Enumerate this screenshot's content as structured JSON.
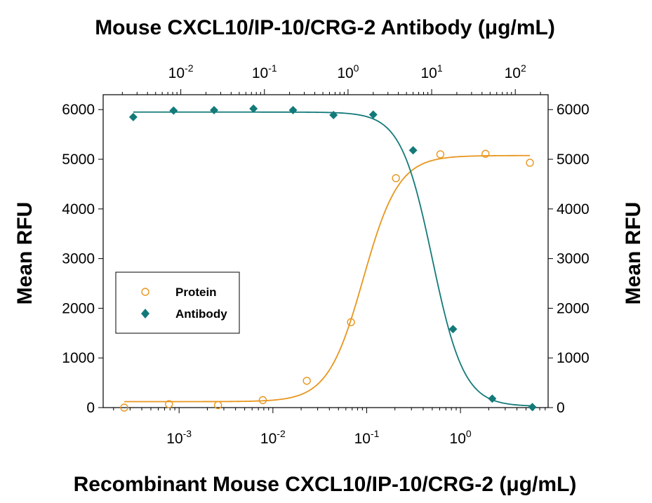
{
  "chart_data": {
    "type": "scatter",
    "title": "Mouse CXCL10/IP-10/CRG-2 Antibody (μg/mL)",
    "xlabel": "Recombinant Mouse CXCL10/IP-10/CRG-2 (μg/mL)",
    "ylabel_left": "Mean RFU",
    "ylabel_right": "Mean RFU",
    "x_bottom": {
      "scale": "log10",
      "lim": [
        0.000155,
        8.6
      ],
      "ticks": [
        {
          "value": 0.001,
          "base": "10",
          "exp": "-3"
        },
        {
          "value": 0.01,
          "base": "10",
          "exp": "-2"
        },
        {
          "value": 0.1,
          "base": "10",
          "exp": "-1"
        },
        {
          "value": 1,
          "base": "10",
          "exp": "0"
        }
      ]
    },
    "x_top": {
      "scale": "log10",
      "lim": [
        0.00118,
        247
      ],
      "ticks": [
        {
          "value": 0.01,
          "base": "10",
          "exp": "-2"
        },
        {
          "value": 0.1,
          "base": "10",
          "exp": "-1"
        },
        {
          "value": 1,
          "base": "10",
          "exp": "0"
        },
        {
          "value": 10,
          "base": "10",
          "exp": "1"
        },
        {
          "value": 100,
          "base": "10",
          "exp": "2"
        }
      ]
    },
    "y": {
      "lim": [
        0,
        6300
      ],
      "ticks": [
        "0",
        "1000",
        "2000",
        "3000",
        "4000",
        "5000",
        "6000"
      ],
      "tick_values": [
        0,
        1000,
        2000,
        3000,
        4000,
        5000,
        6000
      ]
    },
    "series": [
      {
        "name": "Protein",
        "axis": "bottom",
        "marker": "open-circle",
        "color": "#e8961e",
        "x": [
          0.00026,
          0.00078,
          0.0026,
          0.0078,
          0.023,
          0.068,
          0.205,
          0.61,
          1.85,
          5.5
        ],
        "y": [
          0,
          70,
          50,
          150,
          540,
          1720,
          4620,
          5100,
          5110,
          4930
        ],
        "fit": {
          "bottom": 120,
          "top": 5075,
          "ec50": 0.092,
          "hill": 2.3
        }
      },
      {
        "name": "Antibody",
        "axis": "top",
        "marker": "filled-diamond",
        "color": "#137a7a",
        "x": [
          0.0027,
          0.0082,
          0.025,
          0.074,
          0.22,
          0.67,
          2.0,
          6.0,
          18,
          53,
          160
        ],
        "y": [
          5850,
          5980,
          5990,
          6020,
          5990,
          5890,
          5900,
          5180,
          1580,
          180,
          10
        ],
        "fit": {
          "bottom": 25,
          "top": 5950,
          "ec50": 10.2,
          "hill": -2.3
        }
      }
    ],
    "legend": {
      "position": "left-middle",
      "entries": [
        "Protein",
        "Antibody"
      ]
    },
    "grid": false
  }
}
